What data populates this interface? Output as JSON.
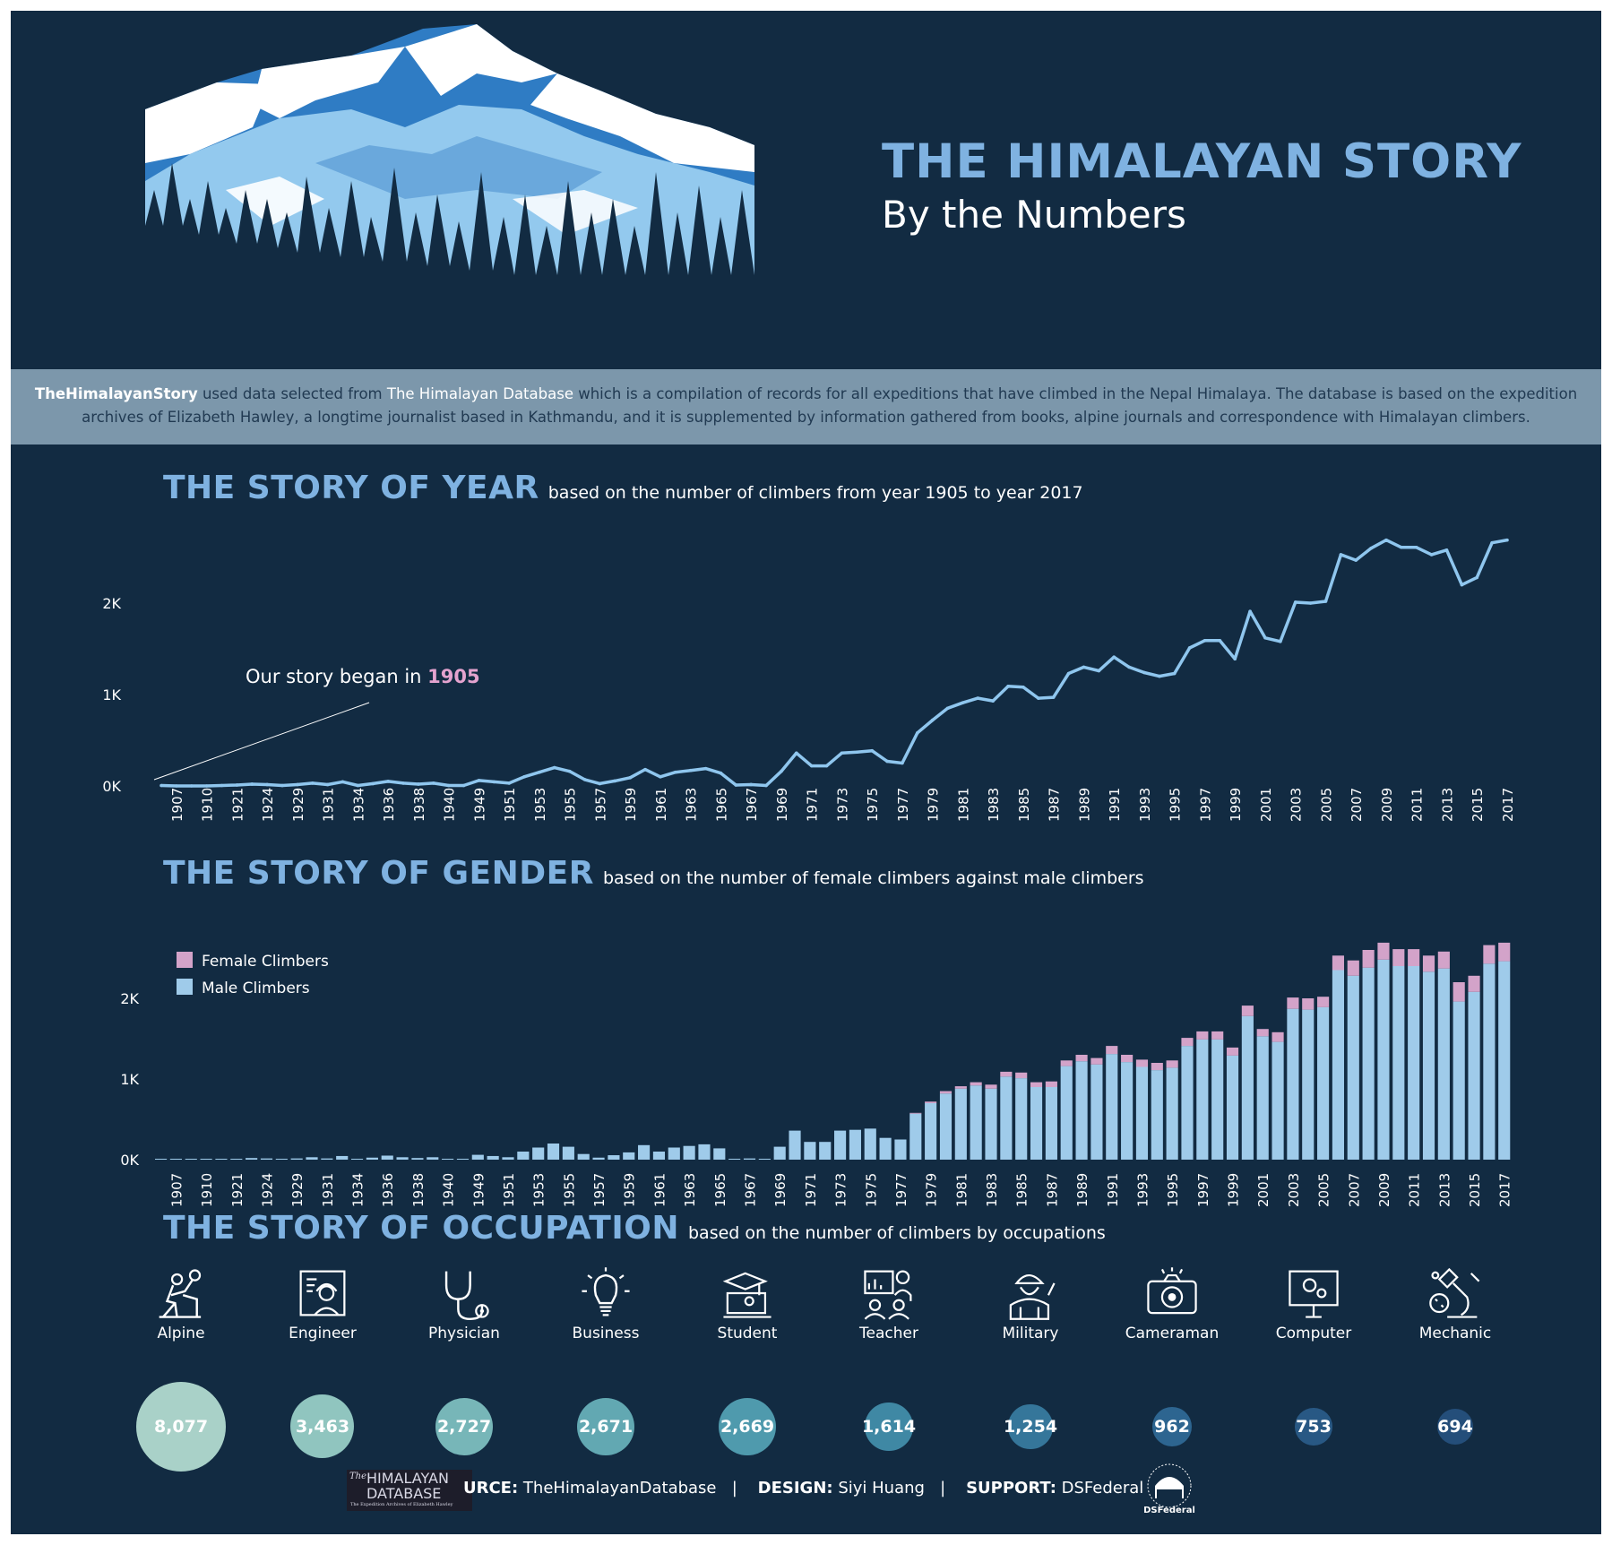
{
  "header": {
    "title": "THE HIMALAYAN STORY",
    "subtitle": "By the Numbers"
  },
  "intro": {
    "brand": "TheHimalayanStory",
    "text1": " used data selected from ",
    "database": "The Himalayan Database",
    "text2": " which is a compilation of records for all expeditions that have climbed in the Nepal Himalaya. The database is based on the expedition archives of Elizabeth Hawley, a longtime journalist based in Kathmandu, and it is supplemented by information gathered from books, alpine journals and correspondence with Himalayan climbers."
  },
  "sections": {
    "year": {
      "title": "THE STORY OF YEAR",
      "subtitle": "based on the number of climbers from year 1905 to year 2017"
    },
    "gender": {
      "title": "THE STORY OF GENDER",
      "subtitle": "based on the number of female climbers against male climbers"
    },
    "occupation": {
      "title": "THE STORY OF OCCUPATION",
      "subtitle": "based on the number of climbers by occupations"
    }
  },
  "annotation": {
    "text": "Our story began in ",
    "year": "1905"
  },
  "colors": {
    "background": "#122b42",
    "accent": "#7fb2e1",
    "line": "#8fc6ee",
    "male": "#9fcbea",
    "female": "#d3a3c9",
    "annotation_year": "#e4a3cf"
  },
  "chart_data": [
    {
      "type": "line",
      "title": "THE STORY OF YEAR",
      "x": [
        "1905",
        "1907",
        "1909",
        "1910",
        "1920",
        "1921",
        "1922",
        "1924",
        "1925",
        "1929",
        "1930",
        "1931",
        "1933",
        "1934",
        "1935",
        "1936",
        "1937",
        "1938",
        "1939",
        "1940",
        "1947",
        "1949",
        "1950",
        "1951",
        "1952",
        "1953",
        "1954",
        "1955",
        "1956",
        "1957",
        "1958",
        "1959",
        "1960",
        "1961",
        "1962",
        "1963",
        "1964",
        "1965",
        "1966",
        "1967",
        "1968",
        "1969",
        "1970",
        "1971",
        "1972",
        "1973",
        "1974",
        "1975",
        "1976",
        "1977",
        "1978",
        "1979",
        "1980",
        "1981",
        "1982",
        "1983",
        "1984",
        "1985",
        "1986",
        "1987",
        "1988",
        "1989",
        "1990",
        "1991",
        "1992",
        "1993",
        "1994",
        "1995",
        "1996",
        "1997",
        "1998",
        "1999",
        "2000",
        "2001",
        "2002",
        "2003",
        "2004",
        "2005",
        "2006",
        "2007",
        "2008",
        "2009",
        "2010",
        "2011",
        "2012",
        "2013",
        "2014",
        "2015",
        "2016",
        "2017"
      ],
      "tick_labels": [
        "1907",
        "1910",
        "1921",
        "1924",
        "1929",
        "1931",
        "1934",
        "1936",
        "1938",
        "1940",
        "1949",
        "1951",
        "1953",
        "1955",
        "1957",
        "1959",
        "1961",
        "1963",
        "1965",
        "1967",
        "1969",
        "1971",
        "1973",
        "1975",
        "1977",
        "1979",
        "1981",
        "1983",
        "1985",
        "1987",
        "1989",
        "1991",
        "1993",
        "1995",
        "1997",
        "1999",
        "2001",
        "2003",
        "2005",
        "2007",
        "2009",
        "2011",
        "2013",
        "2015",
        "2017"
      ],
      "y": [
        5,
        0,
        0,
        0,
        5,
        10,
        20,
        15,
        5,
        15,
        30,
        15,
        45,
        5,
        25,
        50,
        30,
        20,
        30,
        5,
        5,
        60,
        45,
        30,
        100,
        150,
        200,
        160,
        70,
        25,
        55,
        90,
        180,
        100,
        150,
        170,
        190,
        140,
        10,
        15,
        5,
        160,
        360,
        220,
        220,
        360,
        370,
        385,
        270,
        250,
        580,
        720,
        850,
        910,
        960,
        930,
        1090,
        1080,
        960,
        970,
        1230,
        1300,
        1260,
        1410,
        1300,
        1240,
        1200,
        1230,
        1510,
        1590,
        1590,
        1390,
        1910,
        1620,
        1580,
        2010,
        2000,
        2020,
        2530,
        2470,
        2600,
        2690,
        2610,
        2610,
        2530,
        2580,
        2200,
        2280,
        2660,
        2690
      ],
      "yticks": [
        "0K",
        "1K",
        "2K"
      ],
      "ylim": [
        0,
        2700
      ]
    },
    {
      "type": "bar",
      "title": "THE STORY OF GENDER",
      "stacked": true,
      "legend": [
        "Female Climbers",
        "Male Climbers"
      ],
      "x": [
        "1905",
        "1907",
        "1909",
        "1910",
        "1920",
        "1921",
        "1922",
        "1924",
        "1925",
        "1929",
        "1930",
        "1931",
        "1933",
        "1934",
        "1935",
        "1936",
        "1937",
        "1938",
        "1939",
        "1940",
        "1947",
        "1949",
        "1950",
        "1951",
        "1952",
        "1953",
        "1954",
        "1955",
        "1956",
        "1957",
        "1958",
        "1959",
        "1960",
        "1961",
        "1962",
        "1963",
        "1964",
        "1965",
        "1966",
        "1967",
        "1968",
        "1969",
        "1970",
        "1971",
        "1972",
        "1973",
        "1974",
        "1975",
        "1976",
        "1977",
        "1978",
        "1979",
        "1980",
        "1981",
        "1982",
        "1983",
        "1984",
        "1985",
        "1986",
        "1987",
        "1988",
        "1989",
        "1990",
        "1991",
        "1992",
        "1993",
        "1994",
        "1995",
        "1996",
        "1997",
        "1998",
        "1999",
        "2000",
        "2001",
        "2002",
        "2003",
        "2004",
        "2005",
        "2006",
        "2007",
        "2008",
        "2009",
        "2010",
        "2011",
        "2012",
        "2013",
        "2014",
        "2015",
        "2016",
        "2017"
      ],
      "tick_labels": [
        "1907",
        "1910",
        "1921",
        "1924",
        "1929",
        "1931",
        "1934",
        "1936",
        "1938",
        "1940",
        "1949",
        "1951",
        "1953",
        "1955",
        "1957",
        "1959",
        "1961",
        "1963",
        "1965",
        "1967",
        "1969",
        "1971",
        "1973",
        "1975",
        "1977",
        "1979",
        "1981",
        "1983",
        "1985",
        "1987",
        "1989",
        "1991",
        "1993",
        "1995",
        "1997",
        "1999",
        "2001",
        "2003",
        "2005",
        "2007",
        "2009",
        "2011",
        "2013",
        "2015",
        "2017"
      ],
      "series": [
        {
          "name": "Male Climbers",
          "values": [
            5,
            0,
            0,
            0,
            5,
            10,
            20,
            15,
            5,
            15,
            30,
            15,
            45,
            5,
            25,
            50,
            30,
            20,
            30,
            5,
            5,
            60,
            45,
            30,
            100,
            150,
            200,
            160,
            70,
            25,
            55,
            90,
            180,
            100,
            150,
            170,
            190,
            140,
            10,
            15,
            5,
            160,
            360,
            220,
            220,
            360,
            370,
            385,
            270,
            250,
            570,
            700,
            820,
            880,
            920,
            880,
            1030,
            1010,
            900,
            900,
            1160,
            1220,
            1180,
            1310,
            1210,
            1150,
            1110,
            1140,
            1410,
            1490,
            1490,
            1290,
            1780,
            1530,
            1460,
            1870,
            1860,
            1890,
            2350,
            2280,
            2380,
            2480,
            2400,
            2400,
            2330,
            2370,
            1960,
            2080,
            2430,
            2460
          ]
        },
        {
          "name": "Female Climbers",
          "values": [
            0,
            0,
            0,
            0,
            0,
            0,
            0,
            0,
            0,
            0,
            0,
            0,
            0,
            0,
            0,
            0,
            0,
            0,
            0,
            0,
            0,
            0,
            0,
            0,
            0,
            0,
            0,
            0,
            0,
            0,
            0,
            0,
            0,
            0,
            0,
            0,
            0,
            0,
            0,
            0,
            0,
            0,
            0,
            0,
            0,
            0,
            0,
            0,
            0,
            0,
            10,
            20,
            30,
            30,
            40,
            50,
            60,
            70,
            60,
            70,
            70,
            80,
            80,
            100,
            90,
            90,
            90,
            90,
            100,
            100,
            100,
            100,
            130,
            90,
            120,
            140,
            140,
            130,
            180,
            190,
            220,
            210,
            210,
            210,
            200,
            210,
            240,
            200,
            230,
            230
          ]
        }
      ],
      "yticks": [
        "0K",
        "1K",
        "2K"
      ],
      "ylim": [
        0,
        2700
      ]
    }
  ],
  "occupations": [
    {
      "label": "Alpine",
      "value": 8077,
      "value_text": "8,077",
      "color": "#a9d1c8",
      "icon": "climber-icon"
    },
    {
      "label": "Engineer",
      "value": 3463,
      "value_text": "3,463",
      "color": "#90c5bf",
      "icon": "engineer-icon"
    },
    {
      "label": "Physician",
      "value": 2727,
      "value_text": "2,727",
      "color": "#77b6b8",
      "icon": "stethoscope-icon"
    },
    {
      "label": "Business",
      "value": 2671,
      "value_text": "2,671",
      "color": "#62a8b2",
      "icon": "lightbulb-icon"
    },
    {
      "label": "Student",
      "value": 2669,
      "value_text": "2,669",
      "color": "#4f9aad",
      "icon": "student-icon"
    },
    {
      "label": "Teacher",
      "value": 1614,
      "value_text": "1,614",
      "color": "#3f88a4",
      "icon": "teacher-icon"
    },
    {
      "label": "Military",
      "value": 1254,
      "value_text": "1,254",
      "color": "#35769a",
      "icon": "soldier-icon"
    },
    {
      "label": "Cameraman",
      "value": 962,
      "value_text": "962",
      "color": "#2d6590",
      "icon": "camera-icon"
    },
    {
      "label": "Computer",
      "value": 753,
      "value_text": "753",
      "color": "#285884",
      "icon": "computer-icon"
    },
    {
      "label": "Mechanic",
      "value": 694,
      "value_text": "694",
      "color": "#244e7a",
      "icon": "microscope-icon"
    }
  ],
  "footer": {
    "source_label": "URCE:",
    "source": "TheHimalayanDatabase",
    "design_label": "DESIGN:",
    "design": "Siyi Huang",
    "support_label": "SUPPORT:",
    "support": "DSFederal",
    "separator": "|",
    "logo_text_1": "The",
    "logo_text_2": "HIMALAYAN",
    "logo_text_3": "DATABASE",
    "logo_text_4": "The Expedition Archives of Elizabeth Hawley",
    "logo2_text": "DSFederal"
  }
}
